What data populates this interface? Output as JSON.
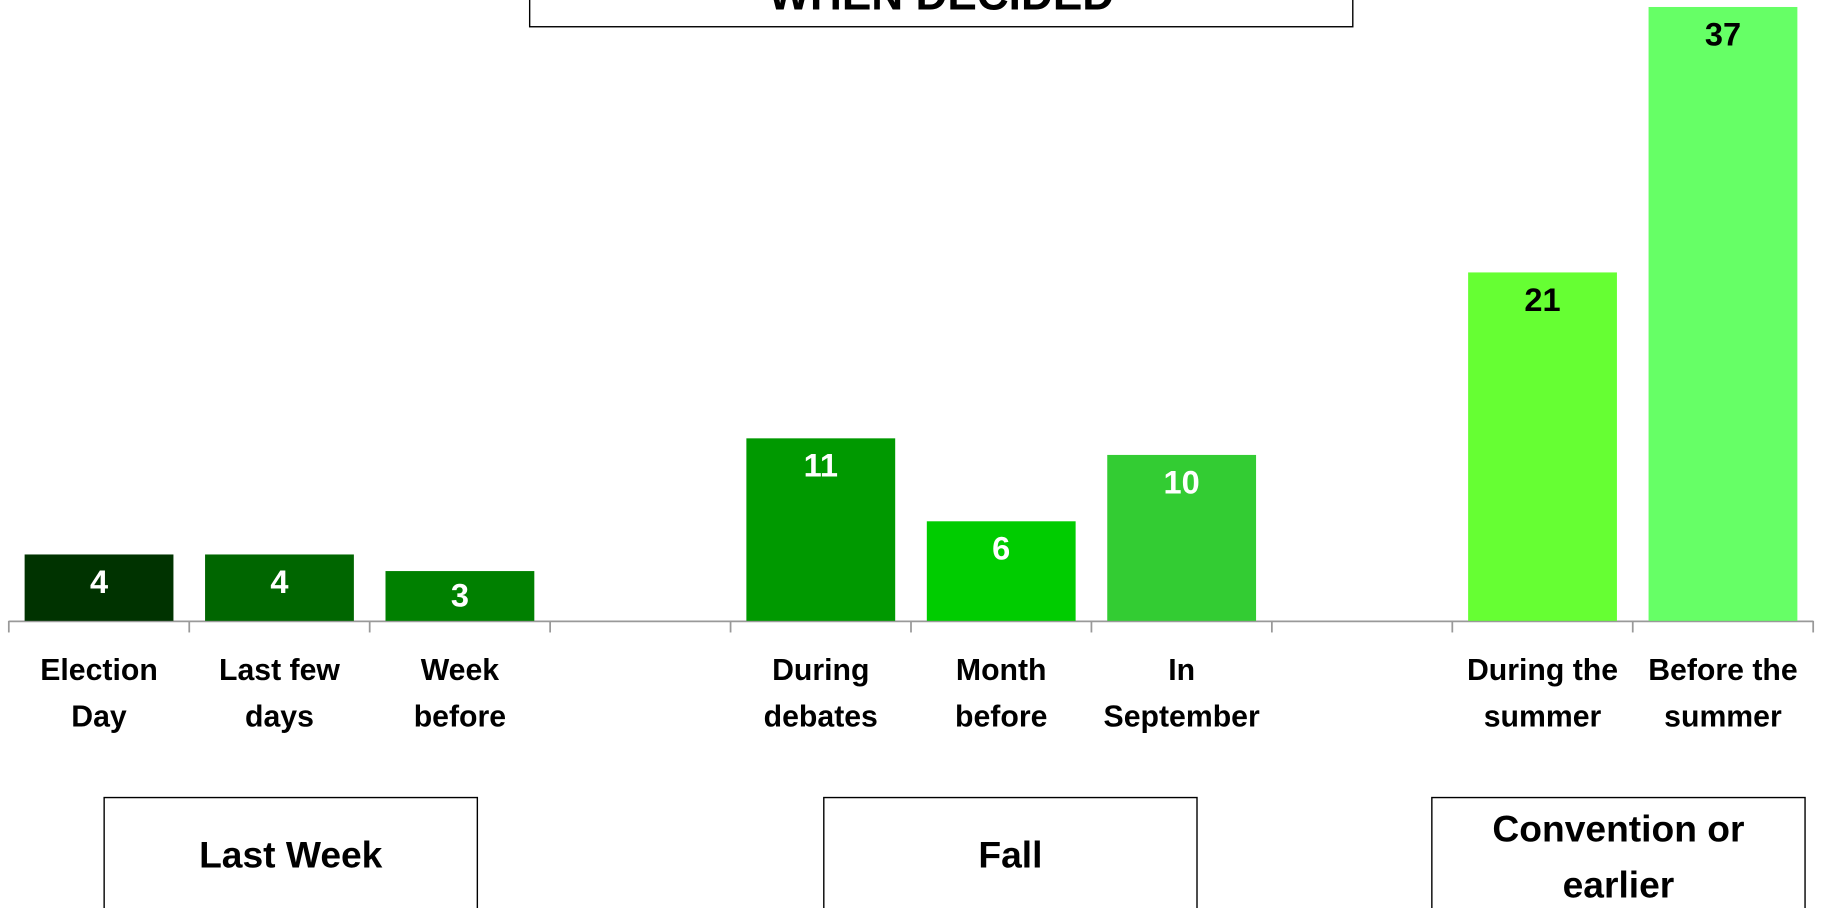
{
  "chart_data": {
    "type": "bar",
    "title": "WHEN DECIDED",
    "categories": [
      "Election Day",
      "Last few days",
      "Week before",
      null,
      "During debates",
      "Month before",
      "In September",
      null,
      "During the summer",
      "Before the summer"
    ],
    "values": [
      4,
      4,
      3,
      null,
      11,
      6,
      10,
      null,
      21,
      37
    ],
    "colors": [
      "#003300",
      "#006600",
      "#008000",
      null,
      "#009900",
      "#00cc00",
      "#33cc33",
      null,
      "#66ff33",
      "#66ff66"
    ],
    "label_colors": [
      "#ffffff",
      "#ffffff",
      "#ffffff",
      null,
      "#ffffff",
      "#ffffff",
      "#ffffff",
      null,
      "#000000",
      "#000000"
    ],
    "ylim": [
      0,
      37
    ],
    "groups": [
      "Last Week",
      "Fall",
      "Convention or earlier"
    ]
  }
}
